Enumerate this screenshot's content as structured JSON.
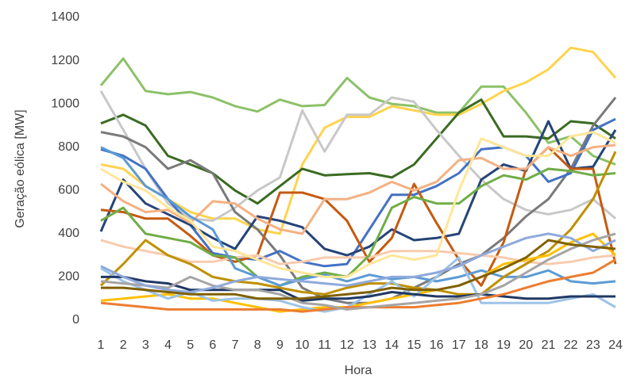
{
  "chart_data": {
    "type": "line",
    "xlabel": "Hora",
    "ylabel": "Geração eólica [MW]",
    "categories": [
      1,
      2,
      3,
      4,
      5,
      6,
      7,
      8,
      9,
      10,
      11,
      12,
      13,
      14,
      15,
      16,
      17,
      18,
      19,
      20,
      21,
      22,
      23,
      24
    ],
    "ylim": [
      0,
      1400
    ],
    "yticks": [
      0,
      200,
      400,
      600,
      800,
      1000,
      1200,
      1400
    ],
    "grid": false,
    "series": [
      {
        "color": "#8cc168",
        "values": [
          1085,
          1210,
          1060,
          1045,
          1055,
          1030,
          990,
          965,
          1020,
          990,
          995,
          1120,
          1030,
          1000,
          990,
          960,
          960,
          1080,
          1080,
          960,
          820,
          850,
          760,
          720
        ]
      },
      {
        "color": "#ffd34d",
        "values": [
          720,
          700,
          620,
          560,
          500,
          470,
          470,
          420,
          400,
          720,
          890,
          940,
          940,
          990,
          970,
          950,
          950,
          1000,
          1060,
          1100,
          1160,
          1260,
          1240,
          1120
        ]
      },
      {
        "color": "#3a6b22",
        "values": [
          910,
          950,
          900,
          760,
          720,
          680,
          600,
          540,
          620,
          700,
          670,
          675,
          680,
          660,
          720,
          840,
          960,
          1020,
          850,
          850,
          840,
          920,
          910,
          840
        ]
      },
      {
        "color": "#c8c8c8",
        "values": [
          1060,
          880,
          700,
          540,
          470,
          460,
          520,
          600,
          660,
          970,
          780,
          950,
          950,
          1030,
          1010,
          880,
          760,
          650,
          560,
          510,
          490,
          510,
          560,
          470
        ]
      },
      {
        "color": "#7a7a7a",
        "values": [
          870,
          850,
          800,
          700,
          740,
          680,
          500,
          420,
          300,
          150,
          100,
          80,
          80,
          100,
          150,
          200,
          260,
          300,
          380,
          480,
          560,
          700,
          900,
          1030
        ]
      },
      {
        "color": "#4472c4",
        "values": [
          790,
          760,
          700,
          560,
          440,
          310,
          290,
          280,
          320,
          270,
          250,
          260,
          420,
          580,
          580,
          620,
          680,
          790,
          800,
          760,
          640,
          680,
          880,
          930
        ]
      },
      {
        "color": "#264478",
        "values": [
          410,
          650,
          540,
          490,
          440,
          380,
          330,
          480,
          460,
          430,
          330,
          300,
          340,
          420,
          370,
          380,
          400,
          650,
          720,
          690,
          920,
          700,
          710,
          880
        ]
      },
      {
        "color": "#c55a11",
        "values": [
          510,
          500,
          470,
          470,
          390,
          300,
          270,
          300,
          590,
          590,
          560,
          460,
          270,
          380,
          630,
          450,
          280,
          160,
          360,
          700,
          800,
          700,
          700,
          260
        ]
      },
      {
        "color": "#f4b183",
        "values": [
          630,
          550,
          500,
          510,
          450,
          550,
          540,
          470,
          420,
          400,
          560,
          560,
          590,
          640,
          600,
          640,
          740,
          750,
          700,
          700,
          800,
          760,
          800,
          810
        ]
      },
      {
        "color": "#f8cbad",
        "values": [
          370,
          340,
          320,
          300,
          270,
          270,
          290,
          300,
          260,
          270,
          290,
          290,
          290,
          320,
          320,
          320,
          310,
          300,
          290,
          270,
          260,
          270,
          290,
          300
        ]
      },
      {
        "color": "#70ad47",
        "values": [
          460,
          520,
          400,
          380,
          360,
          300,
          290,
          200,
          160,
          200,
          220,
          200,
          300,
          520,
          570,
          540,
          540,
          620,
          670,
          650,
          700,
          690,
          670,
          680
        ]
      },
      {
        "color": "#5b9bd5",
        "values": [
          800,
          750,
          620,
          560,
          480,
          420,
          240,
          200,
          160,
          190,
          210,
          180,
          210,
          190,
          200,
          180,
          200,
          230,
          200,
          200,
          230,
          180,
          170,
          180
        ]
      },
      {
        "color": "#bf9000",
        "values": [
          160,
          260,
          370,
          300,
          260,
          200,
          180,
          170,
          150,
          130,
          120,
          150,
          170,
          170,
          150,
          140,
          120,
          120,
          200,
          260,
          320,
          420,
          560,
          780
        ]
      },
      {
        "color": "#ffc000",
        "values": [
          90,
          100,
          110,
          120,
          100,
          100,
          80,
          60,
          40,
          50,
          60,
          60,
          80,
          100,
          120,
          140,
          160,
          200,
          260,
          280,
          300,
          360,
          400,
          300
        ]
      },
      {
        "color": "#9dc3e6",
        "values": [
          240,
          180,
          140,
          100,
          130,
          90,
          100,
          100,
          90,
          60,
          40,
          60,
          120,
          180,
          110,
          200,
          290,
          80,
          80,
          80,
          80,
          100,
          120,
          60
        ]
      },
      {
        "color": "#203864",
        "values": [
          200,
          200,
          180,
          170,
          140,
          140,
          140,
          140,
          140,
          90,
          100,
          100,
          110,
          130,
          120,
          110,
          110,
          120,
          110,
          100,
          100,
          110,
          110,
          110
        ]
      },
      {
        "color": "#ed7d31",
        "values": [
          80,
          70,
          60,
          50,
          50,
          50,
          50,
          50,
          50,
          40,
          50,
          60,
          60,
          60,
          60,
          70,
          80,
          100,
          120,
          150,
          180,
          200,
          220,
          280
        ]
      },
      {
        "color": "#a5a5a5",
        "values": [
          180,
          170,
          160,
          150,
          200,
          160,
          140,
          140,
          120,
          80,
          70,
          50,
          60,
          70,
          80,
          90,
          100,
          120,
          160,
          220,
          280,
          330,
          370,
          400
        ]
      },
      {
        "color": "#8faadc",
        "values": [
          250,
          200,
          160,
          140,
          130,
          150,
          180,
          200,
          190,
          180,
          170,
          160,
          180,
          200,
          200,
          220,
          250,
          300,
          340,
          380,
          400,
          380,
          320,
          370
        ]
      },
      {
        "color": "#ffe699",
        "values": [
          700,
          640,
          600,
          520,
          460,
          340,
          320,
          280,
          240,
          220,
          200,
          200,
          260,
          300,
          280,
          300,
          600,
          840,
          800,
          760,
          760,
          850,
          870,
          820
        ]
      },
      {
        "color": "#806000",
        "values": [
          150,
          150,
          140,
          130,
          120,
          120,
          120,
          100,
          100,
          100,
          110,
          120,
          130,
          150,
          140,
          140,
          160,
          200,
          240,
          290,
          370,
          350,
          340,
          330
        ]
      }
    ]
  }
}
